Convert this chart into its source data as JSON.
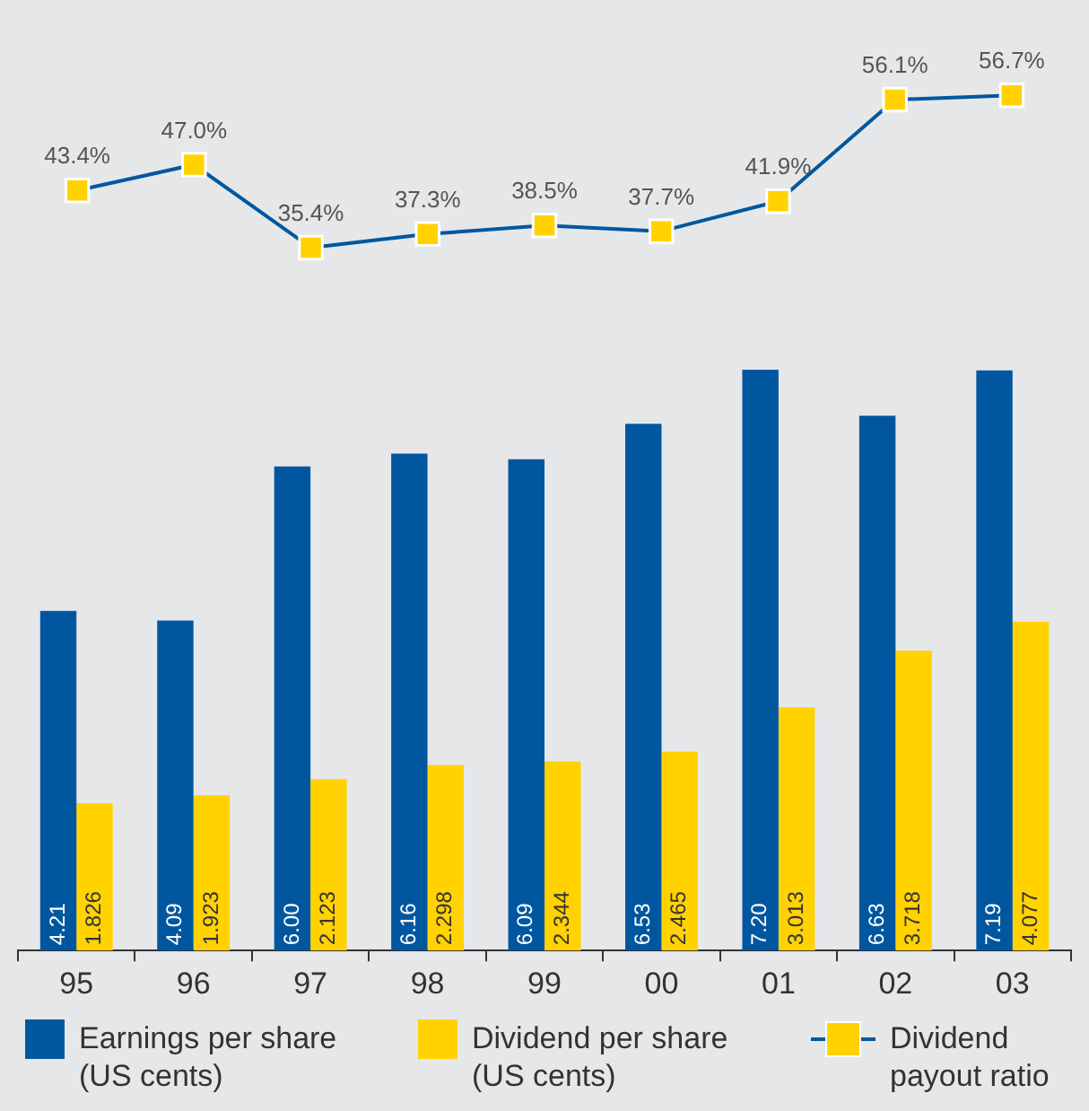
{
  "chart_data": [
    {
      "type": "line",
      "categories": [
        "95",
        "96",
        "97",
        "98",
        "99",
        "00",
        "01",
        "02",
        "03"
      ],
      "tick_labels": false,
      "marker": "square",
      "line_style": "solid",
      "grid": false,
      "legend": "bottom",
      "series": [
        {
          "name": "Dividend payout ratio",
          "color": "#0057a0",
          "colors": [
            "#ffd200",
            "#ffd200",
            "#ffd200",
            "#ffd200",
            "#ffd200",
            "#ffd200",
            "#ffd200",
            "#ffd200",
            "#ffd200"
          ],
          "values": [
            43.4,
            47.0,
            35.4,
            37.3,
            38.5,
            37.7,
            41.9,
            56.1,
            56.7
          ],
          "value_labels": [
            "43.4%",
            "47.0%",
            "35.4%",
            "37.3%",
            "38.5%",
            "37.7%",
            "41.9%",
            "56.1%",
            "56.7%"
          ]
        }
      ]
    },
    {
      "type": "bar",
      "categories": [
        "95",
        "96",
        "97",
        "98",
        "99",
        "00",
        "01",
        "02",
        "03"
      ],
      "tick_labels": "x",
      "grid": false,
      "legend": "bottom",
      "series": [
        {
          "name": "Earnings per share (US cents)",
          "color": "#0057a0",
          "values": [
            4.21,
            4.09,
            6.0,
            6.16,
            6.09,
            6.53,
            7.2,
            6.63,
            7.19
          ],
          "value_labels": [
            "4.21",
            "4.09",
            "6.00",
            "6.16",
            "6.09",
            "6.53",
            "7.20",
            "6.63",
            "7.19"
          ]
        },
        {
          "name": "Dividend per share (US cents)",
          "color": "#ffd200",
          "values": [
            1.826,
            1.923,
            2.123,
            2.298,
            2.344,
            2.465,
            3.013,
            3.718,
            4.077
          ],
          "value_labels": [
            "1.826",
            "1.923",
            "2.123",
            "2.298",
            "2.344",
            "2.465",
            "3.013",
            "3.718",
            "4.077"
          ]
        }
      ]
    }
  ]
}
